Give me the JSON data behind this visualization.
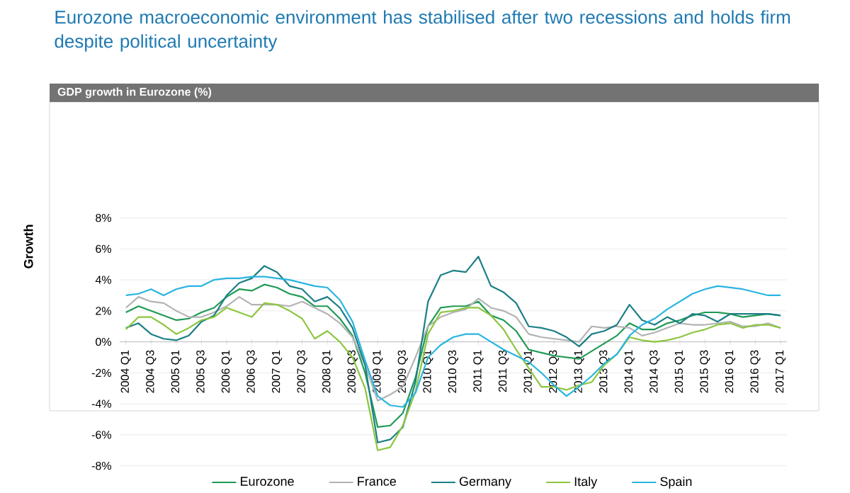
{
  "chart_data": {
    "type": "line",
    "title": "Eurozone macroeconomic environment has stabilised after two recessions and holds firm despite political uncertainty",
    "subtitle": "GDP growth in Eurozone (%)",
    "ylabel": "Growth",
    "categories": [
      "2004 Q1",
      null,
      "2004 Q3",
      null,
      "2005 Q1",
      null,
      "2005 Q3",
      null,
      "2006 Q1",
      null,
      "2006 Q3",
      null,
      "2007 Q1",
      null,
      "2007 Q3",
      null,
      "2008 Q1",
      null,
      "2008 Q3",
      null,
      "2009 Q1",
      null,
      "2009 Q3",
      null,
      "2010 Q1",
      null,
      "2010 Q3",
      null,
      "2011 Q1",
      null,
      "2011 Q3",
      null,
      "2012 Q1",
      null,
      "2012 Q3",
      null,
      "2013 Q1",
      null,
      "2013 Q3",
      null,
      "2014 Q1",
      null,
      "2014 Q3",
      null,
      "2015 Q1",
      null,
      "2015 Q3",
      null,
      "2016 Q1",
      null,
      "2016 Q3",
      null,
      "2017 Q1"
    ],
    "series": [
      {
        "name": "Eurozone",
        "color": "#1f9a55",
        "values": [
          1.9,
          2.3,
          2.0,
          1.7,
          1.4,
          1.5,
          1.9,
          2.2,
          2.9,
          3.4,
          3.3,
          3.7,
          3.5,
          3.1,
          2.9,
          2.3,
          2.3,
          1.5,
          0.4,
          -2.0,
          -5.5,
          -5.4,
          -4.6,
          -2.3,
          1.0,
          2.2,
          2.3,
          2.3,
          2.6,
          1.7,
          1.4,
          0.7,
          -0.5,
          -0.7,
          -0.9,
          -1.0,
          -1.1,
          -0.6,
          -0.1,
          0.4,
          1.2,
          0.8,
          0.8,
          1.2,
          1.4,
          1.7,
          1.9,
          1.9,
          1.8,
          1.6,
          1.7,
          1.8,
          1.7
        ]
      },
      {
        "name": "France",
        "color": "#b3b3b3",
        "values": [
          2.2,
          2.9,
          2.6,
          2.5,
          2.0,
          1.6,
          1.6,
          1.9,
          2.3,
          2.9,
          2.4,
          2.4,
          2.4,
          2.3,
          2.6,
          2.2,
          1.8,
          1.2,
          0.3,
          -1.5,
          -3.8,
          -3.4,
          -2.9,
          -1.0,
          1.0,
          1.6,
          1.9,
          2.1,
          2.8,
          2.2,
          2.0,
          1.6,
          0.5,
          0.3,
          0.2,
          0.1,
          0.0,
          1.0,
          0.9,
          1.0,
          0.9,
          0.4,
          0.6,
          0.9,
          1.2,
          1.1,
          1.1,
          1.2,
          1.3,
          1.0,
          1.0,
          1.2,
          0.9
        ]
      },
      {
        "name": "Germany",
        "color": "#1c7f86",
        "values": [
          0.9,
          1.2,
          0.5,
          0.2,
          0.1,
          0.4,
          1.3,
          1.7,
          3.0,
          3.8,
          4.1,
          4.9,
          4.5,
          3.6,
          3.4,
          2.6,
          2.9,
          2.2,
          0.9,
          -1.5,
          -6.5,
          -6.3,
          -5.5,
          -2.6,
          2.6,
          4.3,
          4.6,
          4.5,
          5.5,
          3.6,
          3.2,
          2.5,
          1.0,
          0.9,
          0.7,
          0.3,
          -0.3,
          0.5,
          0.7,
          1.1,
          2.4,
          1.4,
          1.1,
          1.6,
          1.2,
          1.8,
          1.7,
          1.3,
          1.8,
          1.8,
          1.8,
          1.8,
          1.7
        ]
      },
      {
        "name": "Italy",
        "color": "#8cc63f",
        "values": [
          0.8,
          1.6,
          1.6,
          1.1,
          0.5,
          0.9,
          1.4,
          1.6,
          2.2,
          1.9,
          1.6,
          2.5,
          2.4,
          2.0,
          1.5,
          0.2,
          0.7,
          0.0,
          -1.0,
          -3.0,
          -7.0,
          -6.8,
          -5.4,
          -3.2,
          0.5,
          1.9,
          2.0,
          2.2,
          2.2,
          1.7,
          0.8,
          -0.5,
          -1.7,
          -2.9,
          -2.9,
          -3.1,
          -2.8,
          -2.6,
          -1.5,
          -0.8,
          0.3,
          0.1,
          0.0,
          0.1,
          0.3,
          0.6,
          0.8,
          1.1,
          1.2,
          0.9,
          1.1,
          1.1,
          0.9
        ]
      },
      {
        "name": "Spain",
        "color": "#29b5e0",
        "values": [
          3.0,
          3.1,
          3.4,
          3.0,
          3.4,
          3.6,
          3.6,
          4.0,
          4.1,
          4.1,
          4.2,
          4.2,
          4.1,
          4.0,
          3.8,
          3.6,
          3.5,
          2.7,
          1.3,
          -1.2,
          -3.5,
          -4.1,
          -4.2,
          -3.3,
          -1.0,
          -0.2,
          0.3,
          0.5,
          0.5,
          0.0,
          -0.5,
          -0.9,
          -1.3,
          -2.0,
          -2.8,
          -3.5,
          -2.9,
          -2.2,
          -1.4,
          -0.8,
          0.4,
          1.1,
          1.5,
          2.1,
          2.6,
          3.1,
          3.4,
          3.6,
          3.5,
          3.4,
          3.2,
          3.0,
          3.0
        ]
      }
    ],
    "ylim": [
      -8,
      8
    ],
    "yticks": [
      {
        "value": -8,
        "label": "-8%"
      },
      {
        "value": -6,
        "label": "-6%"
      },
      {
        "value": -4,
        "label": "-4%"
      },
      {
        "value": -2,
        "label": "-2%"
      },
      {
        "value": 0,
        "label": "0%"
      },
      {
        "value": 2,
        "label": "2%"
      },
      {
        "value": 4,
        "label": "4%"
      },
      {
        "value": 6,
        "label": "6%"
      },
      {
        "value": 8,
        "label": "8%"
      }
    ],
    "grid": "y",
    "legend": "bottom"
  }
}
